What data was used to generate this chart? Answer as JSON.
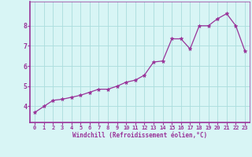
{
  "x": [
    0,
    1,
    2,
    3,
    4,
    5,
    6,
    7,
    8,
    9,
    10,
    11,
    12,
    13,
    14,
    15,
    16,
    17,
    18,
    19,
    20,
    21,
    22,
    23
  ],
  "y": [
    3.7,
    4.0,
    4.3,
    4.35,
    4.45,
    4.55,
    4.7,
    4.85,
    4.85,
    5.0,
    5.2,
    5.3,
    5.55,
    6.2,
    6.25,
    7.35,
    7.35,
    6.85,
    8.0,
    8.0,
    8.35,
    8.6,
    8.0,
    6.75
  ],
  "line_color": "#993399",
  "marker": "*",
  "marker_size": 3.5,
  "bg_color": "#d8f5f5",
  "grid_color": "#aadddd",
  "xlabel": "Windchill (Refroidissement éolien,°C)",
  "xlabel_color": "#993399",
  "tick_color": "#993399",
  "xlim": [
    -0.5,
    23.5
  ],
  "ylim": [
    3.2,
    9.2
  ],
  "yticks": [
    4,
    5,
    6,
    7,
    8
  ],
  "xticks": [
    0,
    1,
    2,
    3,
    4,
    5,
    6,
    7,
    8,
    9,
    10,
    11,
    12,
    13,
    14,
    15,
    16,
    17,
    18,
    19,
    20,
    21,
    22,
    23
  ],
  "spine_color": "#993399",
  "axis_line_color": "#993399"
}
